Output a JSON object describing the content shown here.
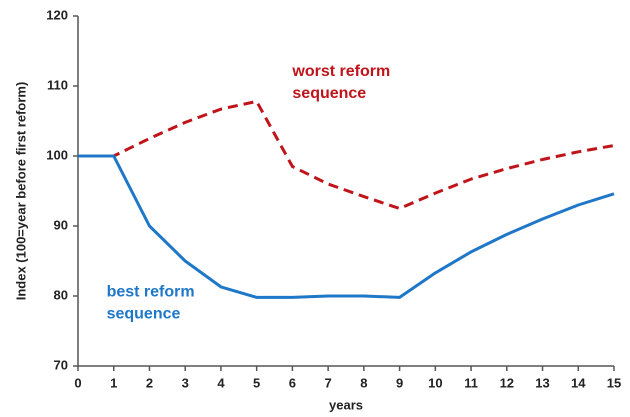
{
  "chart_data": {
    "type": "line",
    "x": [
      0,
      1,
      2,
      3,
      4,
      5,
      6,
      7,
      8,
      9,
      10,
      11,
      12,
      13,
      14,
      15
    ],
    "series": [
      {
        "color": "#c0141b",
        "dash": true,
        "values": [
          100,
          100,
          102.5,
          104.8,
          106.7,
          107.8,
          98.5,
          96,
          94.2,
          92.5,
          94.7,
          96.7,
          98.2,
          99.5,
          100.6,
          101.5
        ]
      },
      {
        "color": "#1f77c8",
        "dash": false,
        "values": [
          100,
          100,
          90,
          85,
          81.3,
          79.8,
          79.8,
          80,
          80,
          79.8,
          83.3,
          86.3,
          88.8,
          91,
          93,
          94.6
        ]
      }
    ],
    "annotations": [
      {
        "lines": [
          "worst reform",
          "sequence"
        ],
        "color": "#c0141b",
        "x": 6,
        "y": 112
      },
      {
        "lines": [
          "best reform",
          "sequence"
        ],
        "color": "#1f77c8",
        "x": 0.8,
        "y": 80.5
      }
    ],
    "xlabel": "years",
    "ylabel": "Index (100=year before first reform)",
    "xlim": [
      0,
      15
    ],
    "ylim": [
      70,
      120
    ],
    "xticks": [
      0,
      1,
      2,
      3,
      4,
      5,
      6,
      7,
      8,
      9,
      10,
      11,
      12,
      13,
      14,
      15
    ],
    "yticks": [
      70,
      80,
      90,
      100,
      110,
      120
    ]
  }
}
